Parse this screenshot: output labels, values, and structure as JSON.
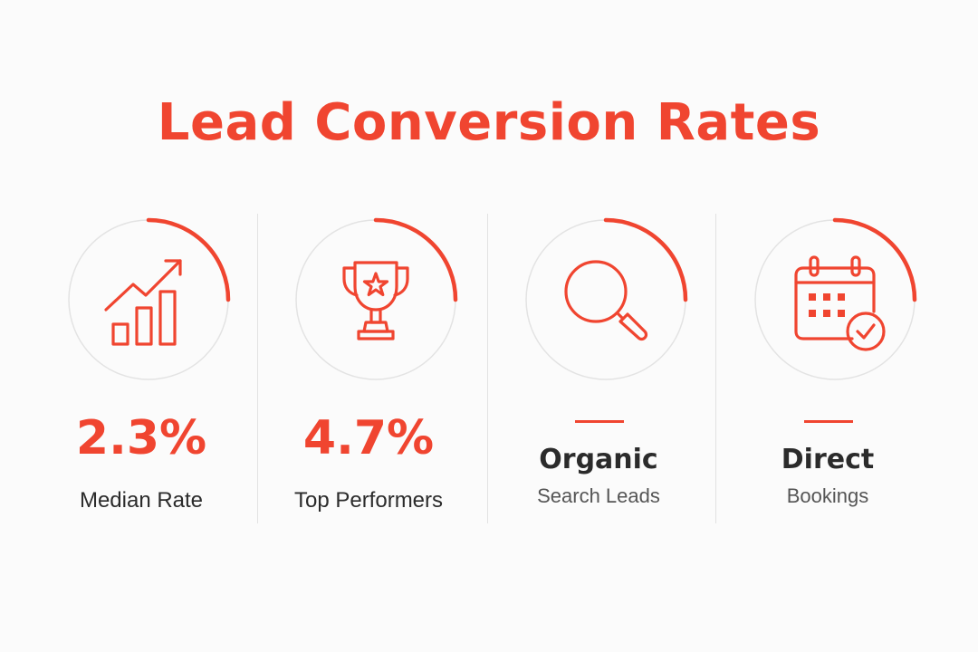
{
  "title": "Lead Conversion Rates",
  "colors": {
    "accent": "#f04530",
    "text_dark": "#2b2b2b",
    "text_mid": "#555555",
    "ring_track": "#e3e3e3",
    "divider": "#e2e2e2",
    "background": "#fbfbfb"
  },
  "stats": [
    {
      "icon": "bar-chart-trend-icon",
      "value": "2.3%",
      "label": "Median Rate"
    },
    {
      "icon": "trophy-star-icon",
      "value": "4.7%",
      "label": "Top Performers"
    },
    {
      "icon": "magnifier-icon",
      "title": "Organic",
      "subtitle": "Search Leads"
    },
    {
      "icon": "calendar-check-icon",
      "title": "Direct",
      "subtitle": "Bookings"
    }
  ]
}
